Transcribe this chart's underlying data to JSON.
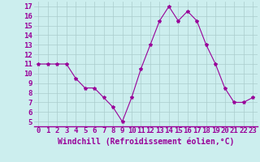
{
  "x": [
    0,
    1,
    2,
    3,
    4,
    5,
    6,
    7,
    8,
    9,
    10,
    11,
    12,
    13,
    14,
    15,
    16,
    17,
    18,
    19,
    20,
    21,
    22,
    23
  ],
  "y": [
    11,
    11,
    11,
    11,
    9.5,
    8.5,
    8.5,
    7.5,
    6.5,
    5,
    7.5,
    10.5,
    13,
    15.5,
    17,
    15.5,
    16.5,
    15.5,
    13,
    11,
    8.5,
    7,
    7,
    7.5
  ],
  "line_color": "#990099",
  "marker": "*",
  "marker_size": 3,
  "bg_color": "#cceeee",
  "grid_color": "#aacccc",
  "xlabel": "Windchill (Refroidissement éolien,°C)",
  "xlabel_color": "#990099",
  "xlabel_fontsize": 7,
  "tick_label_color": "#990099",
  "tick_fontsize": 6.5,
  "ylim": [
    4.5,
    17.5
  ],
  "xlim": [
    -0.5,
    23.5
  ],
  "yticks": [
    5,
    6,
    7,
    8,
    9,
    10,
    11,
    12,
    13,
    14,
    15,
    16,
    17
  ],
  "xticks": [
    0,
    1,
    2,
    3,
    4,
    5,
    6,
    7,
    8,
    9,
    10,
    11,
    12,
    13,
    14,
    15,
    16,
    17,
    18,
    19,
    20,
    21,
    22,
    23
  ],
  "border_color": "#990099"
}
